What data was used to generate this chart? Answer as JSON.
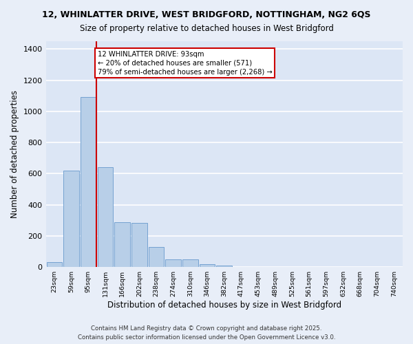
{
  "title_line1": "12, WHINLATTER DRIVE, WEST BRIDGFORD, NOTTINGHAM, NG2 6QS",
  "title_line2": "Size of property relative to detached houses in West Bridgford",
  "xlabel": "Distribution of detached houses by size in West Bridgford",
  "ylabel": "Number of detached properties",
  "bins": [
    "23sqm",
    "59sqm",
    "95sqm",
    "131sqm",
    "166sqm",
    "202sqm",
    "238sqm",
    "274sqm",
    "310sqm",
    "346sqm",
    "382sqm",
    "417sqm",
    "453sqm",
    "489sqm",
    "525sqm",
    "561sqm",
    "597sqm",
    "632sqm",
    "668sqm",
    "704sqm",
    "740sqm"
  ],
  "values": [
    30,
    620,
    1090,
    640,
    290,
    285,
    130,
    50,
    50,
    20,
    10,
    0,
    0,
    0,
    0,
    0,
    0,
    0,
    0,
    0,
    0
  ],
  "bar_color": "#b8cfe8",
  "bar_edge_color": "#6699cc",
  "vline_bin_index": 2,
  "annotation_text": "12 WHINLATTER DRIVE: 93sqm\n← 20% of detached houses are smaller (571)\n79% of semi-detached houses are larger (2,268) →",
  "vline_color": "#cc0000",
  "bg_color": "#dce6f5",
  "grid_color": "white",
  "footer_line1": "Contains HM Land Registry data © Crown copyright and database right 2025.",
  "footer_line2": "Contains public sector information licensed under the Open Government Licence v3.0.",
  "ylim": [
    0,
    1450
  ],
  "yticks": [
    0,
    200,
    400,
    600,
    800,
    1000,
    1200,
    1400
  ],
  "fig_bg_color": "#e8eef8"
}
